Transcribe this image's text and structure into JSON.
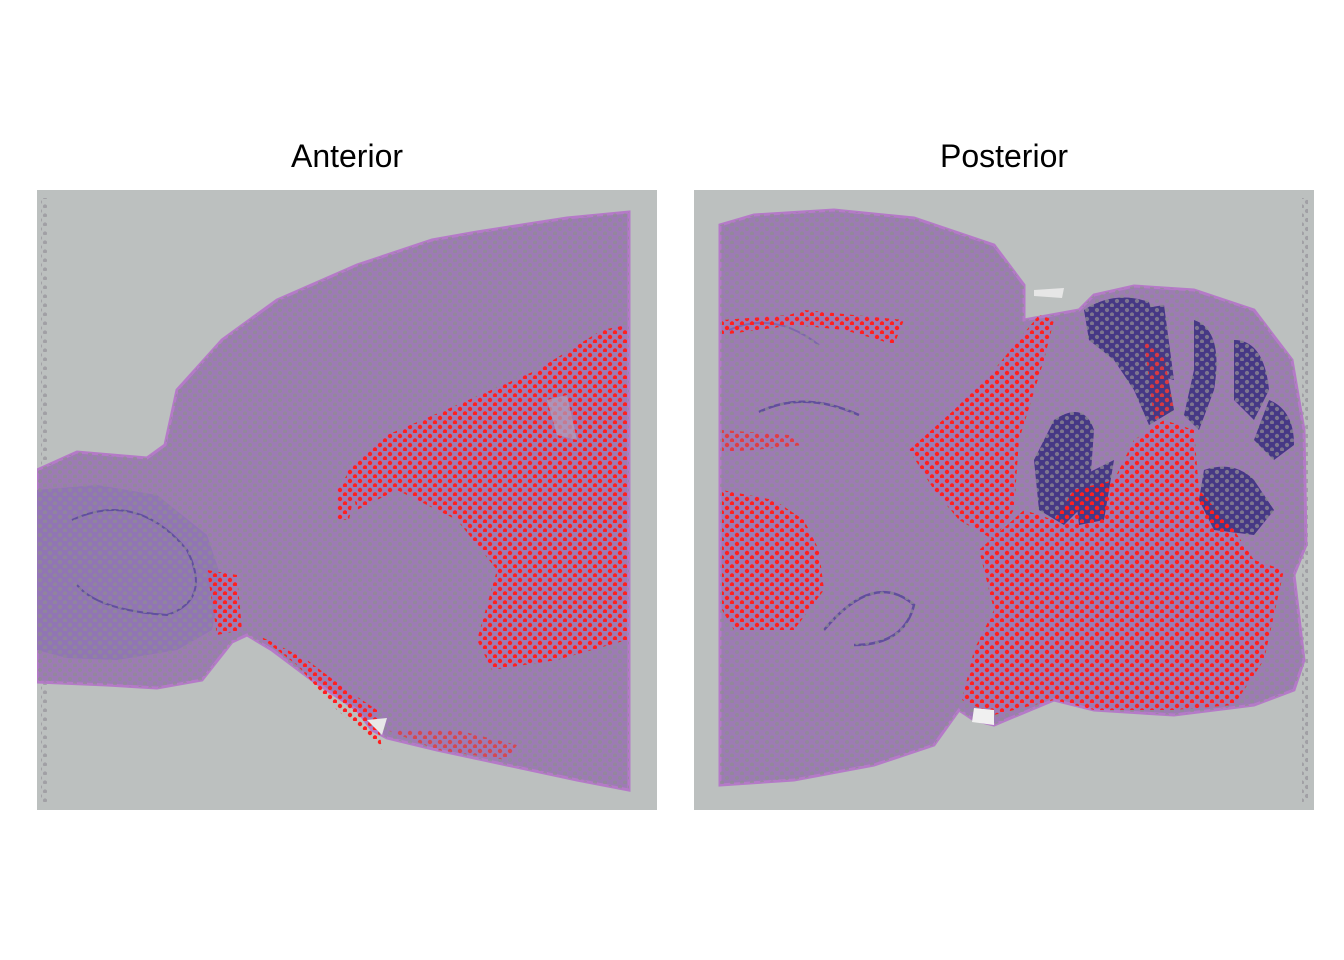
{
  "panels": [
    {
      "title": "Anterior"
    },
    {
      "title": "Posterior"
    }
  ],
  "colors": {
    "background": "#ffffff",
    "slide": "#bcc0bf",
    "tissue": "#9d7bb4",
    "tissue_edge": "#b57ac8",
    "dark_stain": "#3a2f7e",
    "spot_default": "#8a8a8a",
    "spot_highlight": "#ff1f1f"
  }
}
